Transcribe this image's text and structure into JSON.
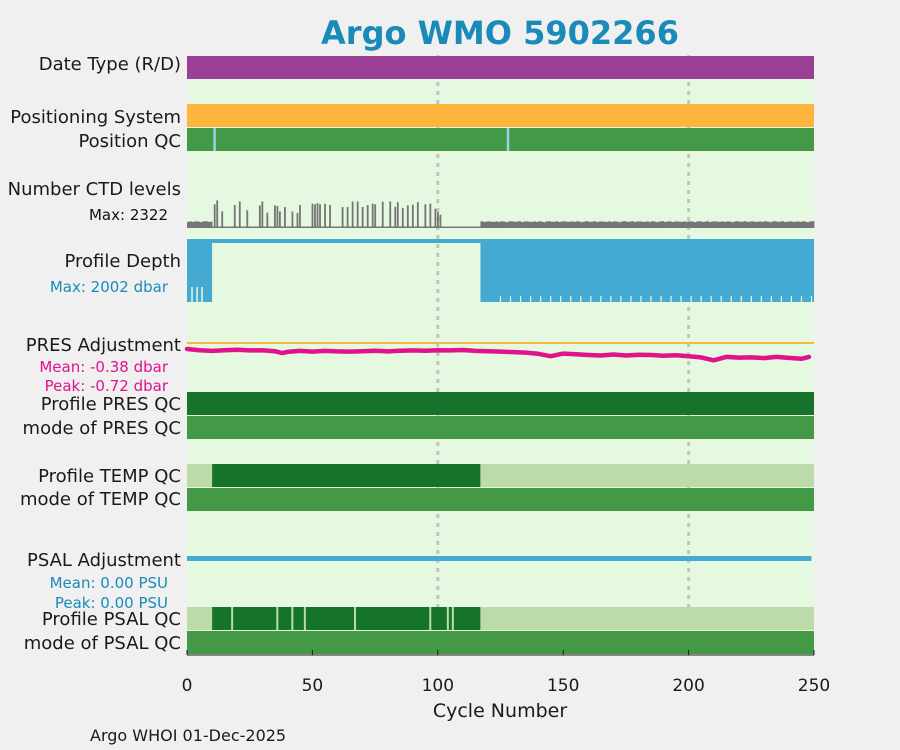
{
  "chart_data": {
    "type": "timeline",
    "title": "Argo WMO 5902266",
    "xlabel": "Cycle Number",
    "xlim": [
      0,
      250
    ],
    "xticks": [
      0,
      50,
      100,
      150,
      200,
      250
    ],
    "xtick_labels": [
      "0",
      "50",
      "100",
      "150",
      "200",
      "250"
    ],
    "vertical_reference_lines": [
      100,
      200
    ],
    "colors": {
      "page_background": "#f0f0f0",
      "plot_background": "#e5f8e0",
      "date_type_delayed": "#9b3f96",
      "positioning_system": "#fdb53e",
      "qc_good": "#439946",
      "qc_dark": "#16742a",
      "qc_light": "#bcdba9",
      "qc_gap": "#9fcfe8",
      "ctd_levels": "#757575",
      "profile_depth": "#44aad2",
      "pres_adjustment": "#e2118c",
      "zero_line": "#f5b942",
      "psal_adjustment": "#44aad2",
      "title": "#1a8ab8"
    },
    "rows": [
      {
        "label": "Date Type (R/D)"
      },
      {
        "label": "Positioning System"
      },
      {
        "label": "Position QC"
      },
      {
        "label": "Number CTD levels",
        "stat": "Max: 2322"
      },
      {
        "label": "Profile Depth",
        "stat": "Max: 2002 dbar"
      },
      {
        "label": "PRES Adjustment",
        "stats": [
          "Mean: -0.38 dbar",
          "Peak: -0.72 dbar"
        ]
      },
      {
        "label": "Profile PRES QC"
      },
      {
        "label": "mode of PRES QC"
      },
      {
        "label": "Profile TEMP QC"
      },
      {
        "label": "mode of TEMP QC"
      },
      {
        "label": "PSAL Adjustment",
        "stats": [
          "Mean: 0.00 PSU",
          "Peak: 0.00 PSU"
        ]
      },
      {
        "label": "Profile PSAL QC"
      },
      {
        "label": "mode of PSAL QC"
      }
    ],
    "series": {
      "date_type": {
        "value": "D",
        "cycles": [
          0,
          250
        ]
      },
      "position_qc_gaps": [
        11,
        128
      ],
      "ctd_levels": {
        "max": 2322,
        "full_resolution_segments": [
          [
            0,
            10
          ],
          [
            117,
            250
          ]
        ],
        "low_resolution_segment": [
          10,
          117
        ],
        "low_resolution_spikes": [
          [
            11,
            860
          ],
          [
            12,
            1000
          ],
          [
            14,
            600
          ],
          [
            19,
            830
          ],
          [
            21,
            960
          ],
          [
            24,
            640
          ],
          [
            29,
            820
          ],
          [
            30,
            960
          ],
          [
            32,
            560
          ],
          [
            35,
            820
          ],
          [
            36,
            800
          ],
          [
            37,
            600
          ],
          [
            39,
            760
          ],
          [
            42,
            600
          ],
          [
            44,
            540
          ],
          [
            45,
            830
          ],
          [
            50,
            880
          ],
          [
            51,
            860
          ],
          [
            52,
            900
          ],
          [
            53,
            860
          ],
          [
            55,
            880
          ],
          [
            57,
            830
          ],
          [
            62,
            760
          ],
          [
            64,
            760
          ],
          [
            66,
            960
          ],
          [
            68,
            960
          ],
          [
            70,
            760
          ],
          [
            72,
            830
          ],
          [
            74,
            880
          ],
          [
            75,
            860
          ],
          [
            78,
            950
          ],
          [
            81,
            960
          ],
          [
            83,
            770
          ],
          [
            84,
            940
          ],
          [
            86,
            720
          ],
          [
            88,
            820
          ],
          [
            90,
            840
          ],
          [
            92,
            940
          ],
          [
            95,
            860
          ],
          [
            97,
            880
          ],
          [
            99,
            700
          ],
          [
            100,
            580
          ],
          [
            101,
            480
          ]
        ]
      },
      "profile_depth": {
        "max": 2002,
        "deep_segments": [
          [
            0,
            10
          ],
          [
            117,
            250
          ]
        ],
        "shallow_segment": [
          10,
          117
        ]
      },
      "pres_adjustment": {
        "mean": -0.38,
        "peak": -0.72,
        "range": [
          -1.2,
          0.4
        ],
        "points": [
          [
            0,
            -0.25
          ],
          [
            5,
            -0.3
          ],
          [
            10,
            -0.33
          ],
          [
            15,
            -0.3
          ],
          [
            20,
            -0.28
          ],
          [
            25,
            -0.31
          ],
          [
            30,
            -0.3
          ],
          [
            35,
            -0.34
          ],
          [
            38,
            -0.42
          ],
          [
            40,
            -0.37
          ],
          [
            45,
            -0.33
          ],
          [
            50,
            -0.36
          ],
          [
            55,
            -0.33
          ],
          [
            60,
            -0.35
          ],
          [
            65,
            -0.36
          ],
          [
            70,
            -0.34
          ],
          [
            75,
            -0.32
          ],
          [
            80,
            -0.35
          ],
          [
            85,
            -0.32
          ],
          [
            90,
            -0.31
          ],
          [
            95,
            -0.32
          ],
          [
            100,
            -0.3
          ],
          [
            105,
            -0.31
          ],
          [
            110,
            -0.29
          ],
          [
            115,
            -0.33
          ],
          [
            120,
            -0.34
          ],
          [
            125,
            -0.36
          ],
          [
            130,
            -0.38
          ],
          [
            135,
            -0.4
          ],
          [
            140,
            -0.45
          ],
          [
            145,
            -0.55
          ],
          [
            150,
            -0.44
          ],
          [
            155,
            -0.47
          ],
          [
            160,
            -0.5
          ],
          [
            165,
            -0.52
          ],
          [
            170,
            -0.48
          ],
          [
            175,
            -0.52
          ],
          [
            180,
            -0.49
          ],
          [
            185,
            -0.5
          ],
          [
            190,
            -0.53
          ],
          [
            195,
            -0.51
          ],
          [
            200,
            -0.55
          ],
          [
            205,
            -0.6
          ],
          [
            210,
            -0.72
          ],
          [
            215,
            -0.58
          ],
          [
            220,
            -0.61
          ],
          [
            225,
            -0.6
          ],
          [
            230,
            -0.63
          ],
          [
            235,
            -0.58
          ],
          [
            240,
            -0.62
          ],
          [
            245,
            -0.66
          ],
          [
            248,
            -0.58
          ]
        ]
      },
      "profile_pres_qc": {
        "segments": [
          [
            0,
            250,
            "dark"
          ]
        ]
      },
      "mode_pres_qc": {
        "segments": [
          [
            0,
            250,
            "good"
          ]
        ]
      },
      "profile_temp_qc": {
        "segments": [
          [
            0,
            10,
            "light"
          ],
          [
            10,
            117,
            "dark"
          ],
          [
            117,
            250,
            "light"
          ]
        ]
      },
      "mode_temp_qc": {
        "segments": [
          [
            0,
            250,
            "good"
          ]
        ]
      },
      "psal_adjustment": {
        "mean": 0.0,
        "peak": 0.0,
        "cycles": [
          0,
          249
        ]
      },
      "profile_psal_qc": {
        "segments": [
          [
            0,
            10,
            "light"
          ],
          [
            10,
            117,
            "dark"
          ],
          [
            117,
            250,
            "light"
          ]
        ],
        "gaps": [
          18,
          36,
          42,
          47,
          67,
          97,
          104,
          106
        ]
      },
      "mode_psal_qc": {
        "segments": [
          [
            0,
            250,
            "good"
          ]
        ]
      }
    }
  },
  "footer": "Argo WHOI 01-Dec-2025"
}
